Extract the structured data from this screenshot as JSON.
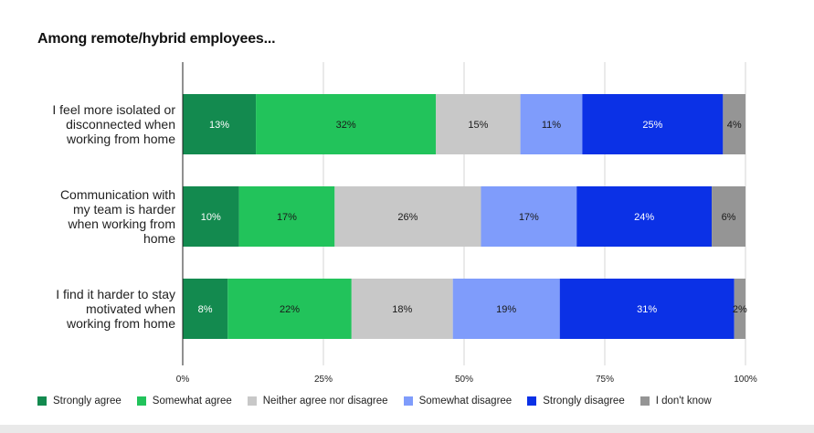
{
  "chart_data": {
    "type": "bar",
    "orientation": "horizontal",
    "stacked": true,
    "title": "Among remote/hybrid employees...",
    "categories": [
      [
        "I feel more isolated or",
        "disconnected when",
        "working from home"
      ],
      [
        "Communication with",
        "my team is harder",
        "when working from",
        "home"
      ],
      [
        "I find it harder to stay",
        "motivated when",
        "working from home"
      ]
    ],
    "series": [
      {
        "name": "Strongly agree",
        "color": "#138a4f",
        "text_color": "#ffffff",
        "values": [
          13,
          10,
          8
        ],
        "labels": [
          "13%",
          "10%",
          "8%"
        ]
      },
      {
        "name": "Somewhat agree",
        "color": "#22c35b",
        "text_color": "#1a1a1a",
        "values": [
          32,
          17,
          22
        ],
        "labels": [
          "32%",
          "17%",
          "22%"
        ]
      },
      {
        "name": "Neither agree nor disagree",
        "color": "#c8c8c8",
        "text_color": "#1a1a1a",
        "values": [
          15,
          26,
          18
        ],
        "labels": [
          "15%",
          "26%",
          "18%"
        ]
      },
      {
        "name": "Somewhat disagree",
        "color": "#7f9cfb",
        "text_color": "#1a1a1a",
        "values": [
          11,
          17,
          19
        ],
        "labels": [
          "11%",
          "17%",
          "19%"
        ]
      },
      {
        "name": "Strongly disagree",
        "color": "#0b31e6",
        "text_color": "#ffffff",
        "values": [
          25,
          24,
          31
        ],
        "labels": [
          "25%",
          "24%",
          "31%"
        ]
      },
      {
        "name": "I don't know",
        "color": "#959595",
        "text_color": "#1a1a1a",
        "values": [
          4,
          6,
          2
        ],
        "labels": [
          "4%",
          "6%",
          "2%"
        ]
      }
    ],
    "xlim": [
      0,
      100
    ],
    "xticks": [
      0,
      25,
      50,
      75,
      100
    ],
    "xtick_labels": [
      "0%",
      "25%",
      "50%",
      "75%",
      "100%"
    ],
    "grid": true,
    "legend_position": "bottom"
  }
}
